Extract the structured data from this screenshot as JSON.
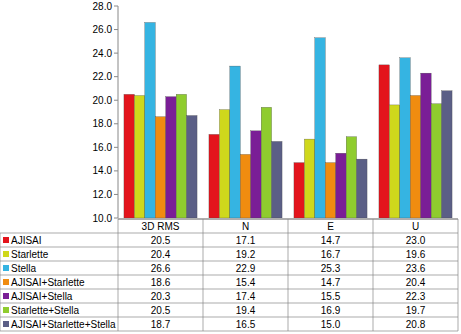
{
  "chart_data": {
    "type": "bar",
    "categories": [
      "3D RMS",
      "N",
      "E",
      "U"
    ],
    "series": [
      {
        "name": "AJISAI",
        "color": "#e3141c",
        "values": [
          20.5,
          17.1,
          14.7,
          23.0
        ],
        "value_labels": [
          "20.5",
          "17.1",
          "14.7",
          "23.0"
        ]
      },
      {
        "name": "Starlette",
        "color": "#cfd81c",
        "values": [
          20.4,
          19.2,
          16.7,
          19.6
        ]
      },
      {
        "name": "Stella",
        "color": "#35b4e2",
        "values": [
          26.6,
          22.9,
          25.3,
          23.6
        ]
      },
      {
        "name": "AJISAI+Starlette",
        "color": "#f08c10",
        "values": [
          18.6,
          15.4,
          14.7,
          20.4
        ]
      },
      {
        "name": "AJISAI+Stella",
        "color": "#7a1e96",
        "values": [
          20.3,
          17.4,
          15.5,
          22.3
        ]
      },
      {
        "name": "Starlette+Stella",
        "color": "#8fcc2e",
        "values": [
          20.5,
          19.4,
          16.9,
          19.7
        ]
      },
      {
        "name": "AJISAI+Starlette+Stella",
        "color": "#5b5f86",
        "values": [
          18.7,
          16.5,
          15.0,
          20.8
        ],
        "value_labels": [
          "18.7",
          "16.5",
          "15.0",
          "20.8"
        ]
      }
    ],
    "ylim": [
      10,
      28
    ],
    "yticks": [
      {
        "value": 10,
        "label": "10.0"
      },
      {
        "value": 12,
        "label": "12.0"
      },
      {
        "value": 14,
        "label": "14.0"
      },
      {
        "value": 16,
        "label": "16.0"
      },
      {
        "value": 18,
        "label": "18.0"
      },
      {
        "value": 20,
        "label": "20.0"
      },
      {
        "value": 22,
        "label": "22.0"
      },
      {
        "value": 24,
        "label": "24.0"
      },
      {
        "value": 26,
        "label": "26.0"
      },
      {
        "value": 28,
        "label": "28.0"
      }
    ],
    "grid": false,
    "data_labels": false
  }
}
